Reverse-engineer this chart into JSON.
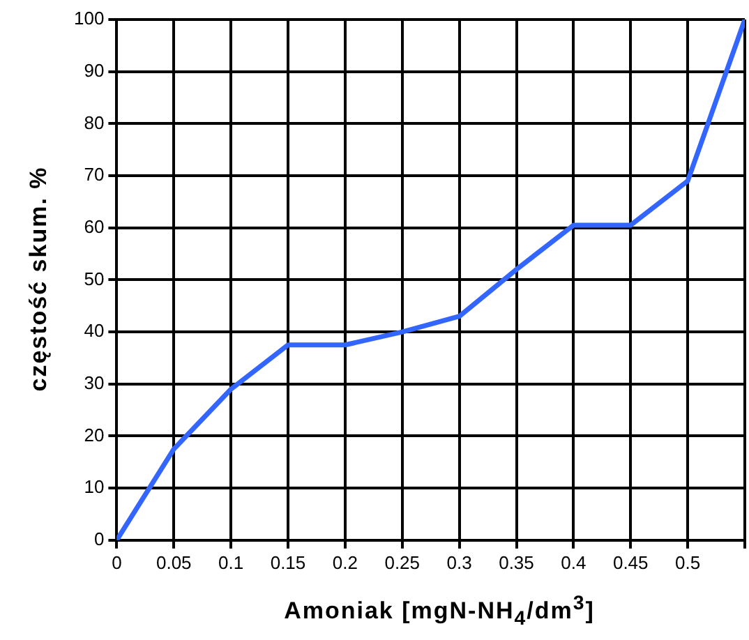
{
  "chart_data": {
    "type": "line",
    "xlabel": "Amoniak [mgN-NH$_{4}$/dm$^{3}$]",
    "ylabel": "częstość skum. %",
    "x": [
      0,
      0.05,
      0.1,
      0.15,
      0.2,
      0.25,
      0.3,
      0.35,
      0.4,
      0.45,
      0.5,
      0.55
    ],
    "series": [
      {
        "color": "#3366ff",
        "values": [
          0,
          17.5,
          29,
          37.5,
          37.5,
          40,
          43,
          52,
          60.5,
          60.5,
          69,
          100
        ]
      }
    ],
    "xlim": [
      0,
      0.55
    ],
    "xticks": [
      0,
      0.05,
      0.1,
      0.15,
      0.2,
      0.25,
      0.3,
      0.35,
      0.4,
      0.45,
      0.5,
      {
        "value": 0.55,
        "label": null
      }
    ],
    "ylim": [
      0,
      100
    ],
    "yticks": [
      0,
      10,
      20,
      30,
      40,
      50,
      60,
      70,
      80,
      90,
      100
    ],
    "grid": true,
    "marker": "none",
    "legend": false
  }
}
